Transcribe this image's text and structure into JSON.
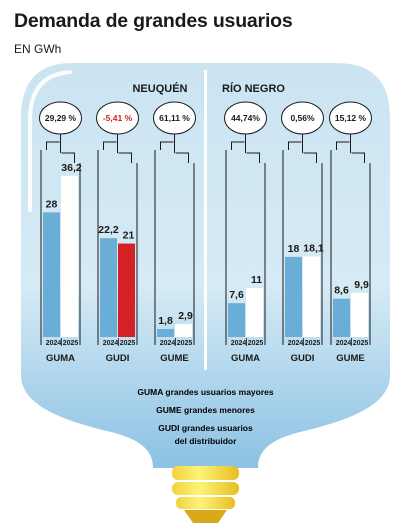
{
  "title": "Demanda de grandes usuarios",
  "subtitle": "EN GWh",
  "colors": {
    "bulb_top": "#cbe4f2",
    "bulb_bottom": "#8cc2e4",
    "bar_2024": "#6aadd6",
    "bar_2025": "#ffffff",
    "highlight_2025": "#d42027",
    "negative_text": "#d42027",
    "base_yellow": "#f7e24a",
    "base_dark": "#e0b41c"
  },
  "legend": [
    {
      "code": "GUMA",
      "text": "grandes usuarios mayores"
    },
    {
      "code": "GUME",
      "text": "grandes menores"
    },
    {
      "code": "GUDI",
      "text": "grandes usuarios",
      "text2": "del distribuidor"
    }
  ],
  "chart_data": [
    {
      "type": "bar",
      "region": "NEUQUÉN",
      "categories": [
        "GUMA",
        "GUDI",
        "GUME"
      ],
      "years": [
        "2024",
        "2025"
      ],
      "series": [
        {
          "name": "2024",
          "values": [
            28,
            22.2,
            1.8
          ]
        },
        {
          "name": "2025",
          "values": [
            36.2,
            21,
            2.9
          ]
        }
      ],
      "value_labels_2024": [
        "28",
        "22,2",
        "1,8"
      ],
      "value_labels_2025": [
        "36,2",
        "21",
        "2,9"
      ],
      "changes": [
        "29,29 %",
        "-5,41 %",
        "61,11 %"
      ],
      "negative": [
        false,
        true,
        false
      ],
      "ylim": [
        0,
        40
      ]
    },
    {
      "type": "bar",
      "region": "RÍO NEGRO",
      "categories": [
        "GUMA",
        "GUDI",
        "GUME"
      ],
      "years": [
        "2024",
        "2025"
      ],
      "series": [
        {
          "name": "2024",
          "values": [
            7.6,
            18,
            8.6
          ]
        },
        {
          "name": "2025",
          "values": [
            11,
            18.1,
            9.9
          ]
        }
      ],
      "value_labels_2024": [
        "7,6",
        "18",
        "8,6"
      ],
      "value_labels_2025": [
        "11",
        "18,1",
        "9,9"
      ],
      "changes": [
        "44,74%",
        "0,56%",
        "15,12 %"
      ],
      "negative": [
        false,
        false,
        false
      ],
      "ylim": [
        0,
        40
      ]
    }
  ]
}
